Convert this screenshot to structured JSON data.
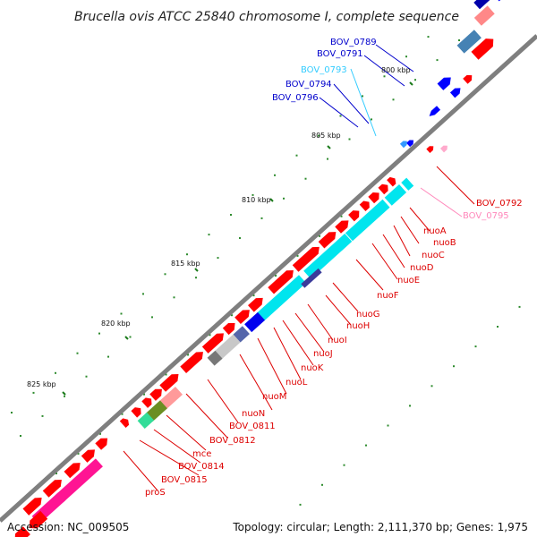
{
  "title": "Brucella ovis ATCC 25840 chromosome I, complete sequence",
  "footer": {
    "accession": "Accession: NC_009505",
    "summary": "Topology: circular; Length: 2,111,370 bp; Genes: 1,975"
  },
  "colors": {
    "backbone": "#7f7f7f",
    "cds": "#ff0000",
    "blue_cds": "#0000ff",
    "cyan": "#00ffff",
    "steelblue": "#4682b4",
    "pink_label": "#ff8fc0",
    "cyan_label": "#00ccff",
    "tick": "#1a7a1a"
  },
  "kbp_labels": [
    "800 kbp",
    "805 kbp",
    "810 kbp",
    "815 kbp",
    "820 kbp",
    "825 kbp"
  ],
  "labels_top": [
    {
      "id": "bov-0789",
      "text": "BOV_0789",
      "color": "#0000cc"
    },
    {
      "id": "bov-0791",
      "text": "BOV_0791",
      "color": "#0000cc"
    },
    {
      "id": "bov-0793",
      "text": "BOV_0793",
      "color": "#33ccff"
    },
    {
      "id": "bov-0794",
      "text": "BOV_0794",
      "color": "#0000cc"
    },
    {
      "id": "bov-0796",
      "text": "BOV_0796",
      "color": "#0000cc"
    }
  ],
  "labels_bottom": [
    {
      "id": "bov-0792",
      "text": "BOV_0792",
      "color": "#dd0000"
    },
    {
      "id": "bov-0795",
      "text": "BOV_0795",
      "color": "#ff88bb"
    },
    {
      "id": "nuoa",
      "text": "nuoA",
      "color": "#dd0000"
    },
    {
      "id": "nuob",
      "text": "nuoB",
      "color": "#dd0000"
    },
    {
      "id": "nuoc",
      "text": "nuoC",
      "color": "#dd0000"
    },
    {
      "id": "nuod",
      "text": "nuoD",
      "color": "#dd0000"
    },
    {
      "id": "nuoe",
      "text": "nuoE",
      "color": "#dd0000"
    },
    {
      "id": "nuof",
      "text": "nuoF",
      "color": "#dd0000"
    },
    {
      "id": "nuog",
      "text": "nuoG",
      "color": "#dd0000"
    },
    {
      "id": "nuoh",
      "text": "nuoH",
      "color": "#dd0000"
    },
    {
      "id": "nuoi",
      "text": "nuoI",
      "color": "#dd0000"
    },
    {
      "id": "nuoj",
      "text": "nuoJ",
      "color": "#dd0000"
    },
    {
      "id": "nuok",
      "text": "nuoK",
      "color": "#dd0000"
    },
    {
      "id": "nuol",
      "text": "nuoL",
      "color": "#dd0000"
    },
    {
      "id": "nuom",
      "text": "nuoM",
      "color": "#dd0000"
    },
    {
      "id": "nuon",
      "text": "nuoN",
      "color": "#dd0000"
    },
    {
      "id": "bov-0811",
      "text": "BOV_0811",
      "color": "#dd0000"
    },
    {
      "id": "bov-0812",
      "text": "BOV_0812",
      "color": "#dd0000"
    },
    {
      "id": "mce",
      "text": "mce",
      "color": "#dd0000"
    },
    {
      "id": "bov-0814",
      "text": "BOV_0814",
      "color": "#dd0000"
    },
    {
      "id": "bov-0815",
      "text": "BOV_0815",
      "color": "#dd0000"
    },
    {
      "id": "pros",
      "text": "proS",
      "color": "#dd0000"
    }
  ]
}
